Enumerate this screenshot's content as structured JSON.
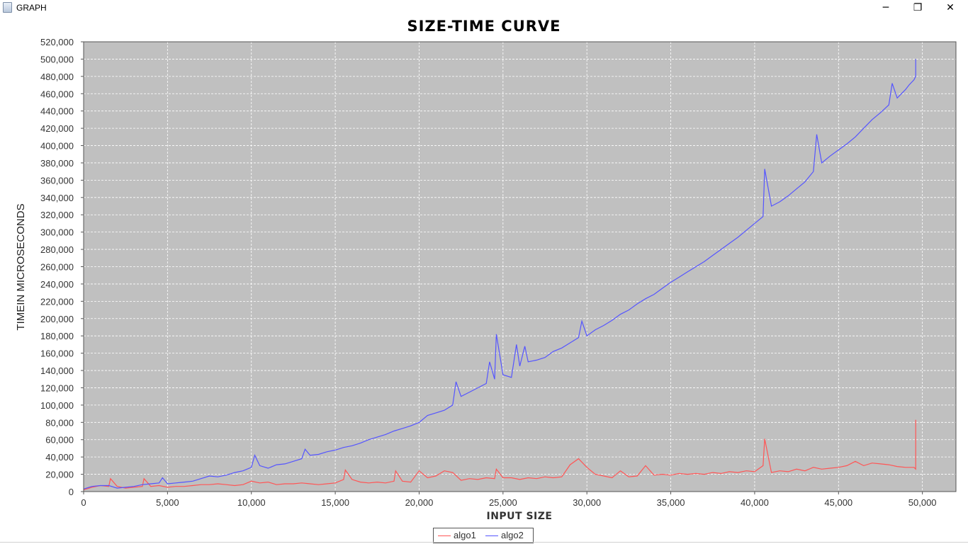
{
  "window": {
    "title": "GRAPH",
    "controls": {
      "minimize": "─",
      "maximize": "❐",
      "close": "✕"
    }
  },
  "chart_data": {
    "type": "line",
    "title": "SIZE-TIME CURVE",
    "xlabel": "INPUT SIZE",
    "ylabel": "TIMEIN MICROSECONDS",
    "xlim": [
      0,
      52000
    ],
    "ylim": [
      0,
      520000
    ],
    "x_ticks": [
      "0",
      "5,000",
      "10,000",
      "15,000",
      "20,000",
      "25,000",
      "30,000",
      "35,000",
      "40,000",
      "45,000",
      "50,000"
    ],
    "y_ticks": [
      "0",
      "20,000",
      "40,000",
      "60,000",
      "80,000",
      "100,000",
      "120,000",
      "140,000",
      "160,000",
      "180,000",
      "200,000",
      "220,000",
      "240,000",
      "260,000",
      "280,000",
      "300,000",
      "320,000",
      "340,000",
      "360,000",
      "380,000",
      "400,000",
      "420,000",
      "440,000",
      "460,000",
      "480,000",
      "500,000",
      "520,000"
    ],
    "grid": true,
    "legend_position": "bottom-center",
    "plot_background": "#c0c0c0",
    "series": [
      {
        "name": "algo1",
        "color": "#ff5555",
        "x": [
          0,
          500,
          1000,
          1500,
          1600,
          2000,
          2500,
          3000,
          3500,
          3600,
          4000,
          4500,
          5000,
          5500,
          6000,
          6500,
          7000,
          7500,
          8000,
          8500,
          9000,
          9500,
          10000,
          10500,
          11000,
          11500,
          12000,
          12500,
          13000,
          13500,
          14000,
          14500,
          15000,
          15500,
          15600,
          16000,
          16500,
          17000,
          17500,
          18000,
          18500,
          18600,
          19000,
          19500,
          20000,
          20500,
          21000,
          21500,
          22000,
          22500,
          23000,
          23500,
          24000,
          24500,
          24600,
          25000,
          25500,
          26000,
          26500,
          27000,
          27500,
          28000,
          28500,
          29000,
          29500,
          30000,
          30500,
          31000,
          31500,
          32000,
          32500,
          33000,
          33500,
          34000,
          34500,
          35000,
          35500,
          36000,
          36500,
          37000,
          37500,
          38000,
          38500,
          39000,
          39500,
          40000,
          40500,
          40600,
          41000,
          41500,
          42000,
          42500,
          43000,
          43500,
          44000,
          44500,
          45000,
          45500,
          46000,
          46500,
          47000,
          47500,
          48000,
          48500,
          49000,
          49500,
          49600,
          49601
        ],
        "y": [
          2000,
          5000,
          7000,
          6000,
          15000,
          6000,
          4000,
          5000,
          6000,
          15000,
          6000,
          7000,
          5000,
          6000,
          6000,
          7000,
          8000,
          8000,
          9000,
          8000,
          7000,
          8000,
          12000,
          10000,
          11000,
          8000,
          9000,
          9000,
          10000,
          9000,
          8000,
          9000,
          10000,
          14000,
          25000,
          14000,
          11000,
          10000,
          11000,
          10000,
          12000,
          24000,
          12000,
          11000,
          24000,
          16000,
          18000,
          24000,
          22000,
          13000,
          15000,
          14000,
          16000,
          15000,
          26000,
          16000,
          16000,
          14000,
          16000,
          15000,
          17000,
          16000,
          17000,
          31000,
          38000,
          28000,
          20000,
          18000,
          16000,
          24000,
          17000,
          18000,
          30000,
          19000,
          20000,
          19000,
          21000,
          20000,
          21000,
          20000,
          22000,
          21000,
          23000,
          22000,
          24000,
          23000,
          30000,
          61000,
          22000,
          24000,
          23000,
          26000,
          24000,
          28000,
          26000,
          27000,
          28000,
          30000,
          35000,
          30000,
          33000,
          32000,
          31000,
          29000,
          28000,
          28000,
          26000,
          83000
        ]
      },
      {
        "name": "algo2",
        "color": "#5555ff",
        "x": [
          0,
          500,
          1000,
          1500,
          2000,
          2500,
          3000,
          3500,
          4000,
          4500,
          4700,
          5000,
          5500,
          6000,
          6500,
          7000,
          7500,
          8000,
          8500,
          9000,
          9500,
          10000,
          10200,
          10500,
          11000,
          11500,
          12000,
          12500,
          13000,
          13200,
          13500,
          14000,
          14500,
          15000,
          15500,
          16000,
          16500,
          17000,
          17500,
          18000,
          18500,
          19000,
          19500,
          20000,
          20500,
          21000,
          21500,
          22000,
          22200,
          22500,
          23000,
          23500,
          24000,
          24200,
          24500,
          24600,
          25000,
          25500,
          25800,
          26000,
          26300,
          26500,
          27000,
          27500,
          28000,
          28500,
          29000,
          29500,
          29700,
          30000,
          30500,
          31000,
          31500,
          32000,
          32500,
          33000,
          33500,
          34000,
          34500,
          35000,
          35500,
          36000,
          36500,
          37000,
          37500,
          38000,
          38500,
          39000,
          39500,
          40000,
          40500,
          40600,
          41000,
          41500,
          42000,
          42500,
          43000,
          43500,
          43700,
          44000,
          44500,
          45000,
          45500,
          46000,
          46500,
          47000,
          47500,
          48000,
          48200,
          48500,
          49000,
          49200,
          49500,
          49600,
          49601
        ],
        "y": [
          3000,
          6000,
          7000,
          7000,
          4000,
          5000,
          6000,
          8000,
          9000,
          10000,
          16000,
          9000,
          10000,
          11000,
          12000,
          15000,
          18000,
          17000,
          19000,
          22000,
          24000,
          28000,
          42000,
          30000,
          27000,
          31000,
          32000,
          35000,
          38000,
          49000,
          42000,
          43000,
          46000,
          48000,
          51000,
          53000,
          56000,
          60000,
          63000,
          66000,
          70000,
          73000,
          76000,
          80000,
          88000,
          91000,
          94000,
          100000,
          127000,
          110000,
          115000,
          120000,
          125000,
          150000,
          130000,
          182000,
          135000,
          132000,
          170000,
          145000,
          168000,
          150000,
          152000,
          155000,
          162000,
          166000,
          172000,
          178000,
          197000,
          180000,
          187000,
          192000,
          198000,
          205000,
          210000,
          217000,
          223000,
          228000,
          235000,
          242000,
          248000,
          254000,
          260000,
          266000,
          273000,
          280000,
          287000,
          294000,
          302000,
          310000,
          318000,
          373000,
          330000,
          335000,
          342000,
          350000,
          358000,
          370000,
          413000,
          380000,
          388000,
          395000,
          402000,
          410000,
          420000,
          430000,
          438000,
          447000,
          472000,
          455000,
          465000,
          470000,
          476000,
          480000,
          500000
        ]
      }
    ]
  }
}
